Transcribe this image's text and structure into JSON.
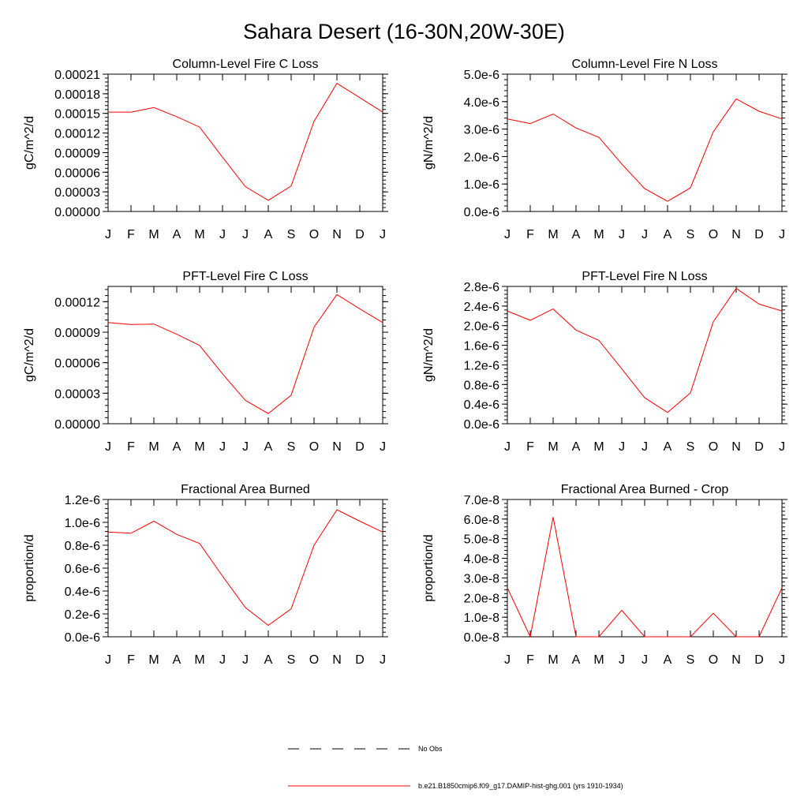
{
  "figure_title": "Sahara Desert (16-30N,20W-30E)",
  "legend": [
    {
      "label": "No Obs",
      "style": "dashed",
      "color": "#000000"
    },
    {
      "label": "b.e21.B1850cmip6.f09_g17.DAMIP-hist-ghg.001 (yrs 1910-1934)",
      "style": "solid",
      "color": "#ff0000"
    }
  ],
  "chart_data": [
    {
      "type": "line",
      "title": "Column-Level Fire C Loss",
      "ylabel": "gC/m^2/d",
      "categories": [
        "J",
        "F",
        "M",
        "A",
        "M",
        "J",
        "J",
        "A",
        "S",
        "O",
        "N",
        "D",
        "J"
      ],
      "ylim": [
        0,
        0.00021
      ],
      "yticks": [
        0,
        3e-05,
        6e-05,
        9e-05,
        0.00012,
        0.00015,
        0.00018,
        0.00021
      ],
      "yticklabels": [
        "0.00000",
        "0.00003",
        "0.00006",
        "0.00009",
        "0.00012",
        "0.00015",
        "0.00018",
        "0.00021"
      ],
      "series": [
        {
          "color": "#ff0000",
          "values": [
            0.000152,
            0.000152,
            0.000159,
            0.000145,
            0.000129,
            8.3e-05,
            3.8e-05,
            1.7e-05,
            3.9e-05,
            0.000138,
            0.000196,
            0.000174,
            0.000152
          ]
        }
      ]
    },
    {
      "type": "line",
      "title": "Column-Level Fire N Loss",
      "ylabel": "gN/m^2/d",
      "categories": [
        "J",
        "F",
        "M",
        "A",
        "M",
        "J",
        "J",
        "A",
        "S",
        "O",
        "N",
        "D",
        "J"
      ],
      "ylim": [
        0,
        5e-06
      ],
      "yticks": [
        0,
        1e-06,
        2e-06,
        3e-06,
        4e-06,
        5e-06
      ],
      "yticklabels": [
        "0.0e-6",
        "1.0e-6",
        "2.0e-6",
        "3.0e-6",
        "4.0e-6",
        "5.0e-6"
      ],
      "series": [
        {
          "color": "#ff0000",
          "values": [
            3.37e-06,
            3.2e-06,
            3.55e-06,
            3.04e-06,
            2.7e-06,
            1.73e-06,
            8.3e-07,
            3.7e-07,
            8.6e-07,
            2.9e-06,
            4.1e-06,
            3.65e-06,
            3.37e-06
          ]
        }
      ]
    },
    {
      "type": "line",
      "title": "PFT-Level Fire C Loss",
      "ylabel": "gC/m^2/d",
      "categories": [
        "J",
        "F",
        "M",
        "A",
        "M",
        "J",
        "J",
        "A",
        "S",
        "O",
        "N",
        "D",
        "J"
      ],
      "ylim": [
        0,
        0.000135
      ],
      "yticks": [
        0,
        3e-05,
        6e-05,
        9e-05,
        0.00012
      ],
      "yticklabels": [
        "0.00000",
        "0.00003",
        "0.00006",
        "0.00009",
        "0.00012"
      ],
      "series": [
        {
          "color": "#ff0000",
          "values": [
            9.95e-05,
            9.75e-05,
            9.8e-05,
            8.8e-05,
            7.7e-05,
            4.9e-05,
            2.3e-05,
            1e-05,
            2.8e-05,
            9.5e-05,
            0.000127,
            0.000113,
            9.95e-05
          ]
        }
      ]
    },
    {
      "type": "line",
      "title": "PFT-Level Fire N Loss",
      "ylabel": "gN/m^2/d",
      "categories": [
        "J",
        "F",
        "M",
        "A",
        "M",
        "J",
        "J",
        "A",
        "S",
        "O",
        "N",
        "D",
        "J"
      ],
      "ylim": [
        0,
        2.8e-06
      ],
      "yticks": [
        0,
        4e-07,
        8e-07,
        1.2e-06,
        1.6e-06,
        2e-06,
        2.4e-06,
        2.8e-06
      ],
      "yticklabels": [
        "0.0e-6",
        "0.4e-6",
        "0.8e-6",
        "1.2e-6",
        "1.6e-6",
        "2.0e-6",
        "2.4e-6",
        "2.8e-6"
      ],
      "series": [
        {
          "color": "#ff0000",
          "values": [
            2.3e-06,
            2.11e-06,
            2.34e-06,
            1.91e-06,
            1.7e-06,
            1.12e-06,
            5.3e-07,
            2.3e-07,
            6.3e-07,
            2.08e-06,
            2.76e-06,
            2.44e-06,
            2.3e-06
          ]
        }
      ]
    },
    {
      "type": "line",
      "title": "Fractional Area Burned",
      "ylabel": "proportion/d",
      "categories": [
        "J",
        "F",
        "M",
        "A",
        "M",
        "J",
        "J",
        "A",
        "S",
        "O",
        "N",
        "D",
        "J"
      ],
      "ylim": [
        0,
        1.2e-06
      ],
      "yticks": [
        0,
        2e-07,
        4e-07,
        6e-07,
        8e-07,
        1e-06,
        1.2e-06
      ],
      "yticklabels": [
        "0.0e-6",
        "0.2e-6",
        "0.4e-6",
        "0.6e-6",
        "0.8e-6",
        "1.0e-6",
        "1.2e-6"
      ],
      "series": [
        {
          "color": "#ff0000",
          "values": [
            9.15e-07,
            9.05e-07,
            1.01e-06,
            8.95e-07,
            8.15e-07,
            5.3e-07,
            2.55e-07,
            1e-07,
            2.45e-07,
            8e-07,
            1.11e-06,
            1.01e-06,
            9.15e-07
          ]
        }
      ]
    },
    {
      "type": "line",
      "title": "Fractional Area Burned - Crop",
      "ylabel": "proportion/d",
      "categories": [
        "J",
        "F",
        "M",
        "A",
        "M",
        "J",
        "J",
        "A",
        "S",
        "O",
        "N",
        "D",
        "J"
      ],
      "ylim": [
        0,
        7e-08
      ],
      "yticks": [
        0,
        1e-08,
        2e-08,
        3e-08,
        4e-08,
        5e-08,
        6e-08,
        7e-08
      ],
      "yticklabels": [
        "0.0e-8",
        "1.0e-8",
        "2.0e-8",
        "3.0e-8",
        "4.0e-8",
        "5.0e-8",
        "6.0e-8",
        "7.0e-8"
      ],
      "series": [
        {
          "color": "#ff0000",
          "values": [
            2.5e-08,
            0,
            6.1e-08,
            0,
            0,
            1.35e-08,
            0,
            0,
            0,
            1.2e-08,
            0,
            0,
            2.5e-08
          ]
        }
      ]
    }
  ]
}
